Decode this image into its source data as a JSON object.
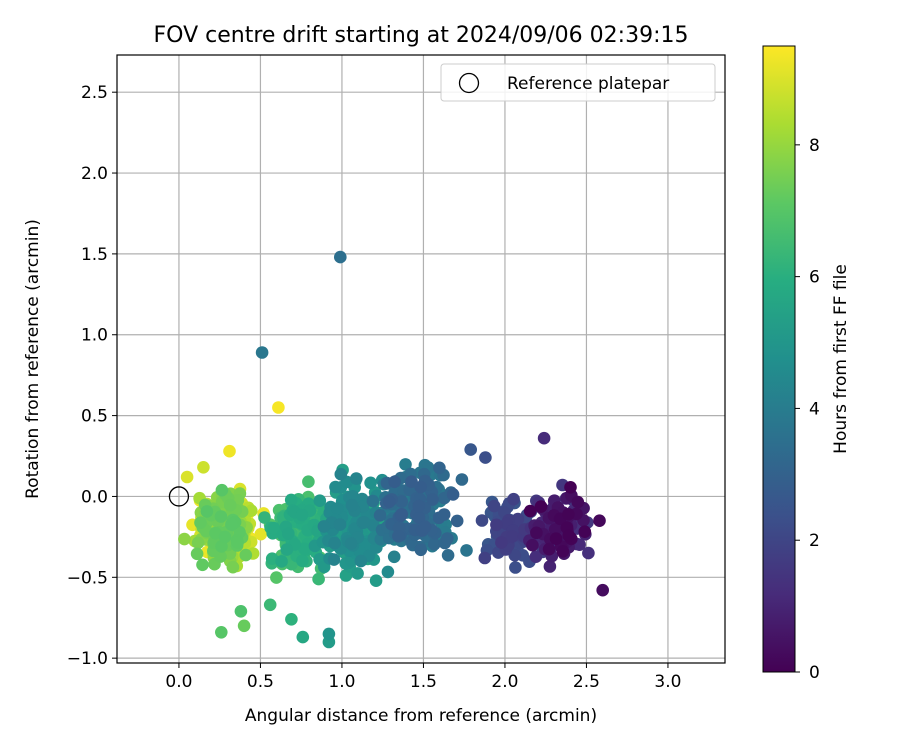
{
  "chart_data": {
    "type": "scatter",
    "title": "FOV centre drift starting at 2024/09/06 02:39:15",
    "xlabel": "Angular distance from reference (arcmin)",
    "ylabel": "Rotation from reference (arcmin)",
    "xlim": [
      -0.38,
      3.35
    ],
    "ylim": [
      -1.03,
      2.73
    ],
    "xticks": [
      0.0,
      0.5,
      1.0,
      1.5,
      2.0,
      2.5,
      3.0
    ],
    "xtick_labels": [
      "0.0",
      "0.5",
      "1.0",
      "1.5",
      "2.0",
      "2.5",
      "3.0"
    ],
    "yticks": [
      -1.0,
      -0.5,
      0.0,
      0.5,
      1.0,
      1.5,
      2.0,
      2.5
    ],
    "ytick_labels": [
      "−1.0",
      "−0.5",
      "0.0",
      "0.5",
      "1.0",
      "1.5",
      "2.0",
      "2.5"
    ],
    "grid": true,
    "legend": {
      "position": "top-right",
      "entries": [
        {
          "label": "Reference platepar",
          "marker": "open-circle",
          "x": 0.0,
          "y": 0.0
        }
      ]
    },
    "colorbar": {
      "label": "Hours from first FF file",
      "colormap": "viridis",
      "min": 0,
      "max": 9.5,
      "ticks": [
        0,
        2,
        4,
        6,
        8
      ],
      "tick_labels": [
        "0",
        "2",
        "4",
        "6",
        "8"
      ]
    },
    "outliers": [
      {
        "x": 0.99,
        "y": 1.48,
        "hours": 3.5
      },
      {
        "x": 0.51,
        "y": 0.89,
        "hours": 3.8
      },
      {
        "x": 0.61,
        "y": 0.55,
        "hours": 9.4
      },
      {
        "x": 0.69,
        "y": -0.39,
        "hours": 9.2
      },
      {
        "x": 0.26,
        "y": -0.84,
        "hours": 7.0
      },
      {
        "x": 0.4,
        "y": -0.8,
        "hours": 7.3
      },
      {
        "x": 0.38,
        "y": -0.71,
        "hours": 6.8
      },
      {
        "x": 0.56,
        "y": -0.67,
        "hours": 6.4
      },
      {
        "x": 0.69,
        "y": -0.76,
        "hours": 6.1
      },
      {
        "x": 0.76,
        "y": -0.87,
        "hours": 5.7
      },
      {
        "x": 0.92,
        "y": -0.9,
        "hours": 5.2
      },
      {
        "x": 0.92,
        "y": -0.85,
        "hours": 4.9
      },
      {
        "x": 1.79,
        "y": 0.29,
        "hours": 2.6
      },
      {
        "x": 1.88,
        "y": 0.24,
        "hours": 2.3
      },
      {
        "x": 2.24,
        "y": 0.36,
        "hours": 1.2
      },
      {
        "x": 2.6,
        "y": -0.58,
        "hours": 0.3
      },
      {
        "x": 2.58,
        "y": -0.15,
        "hours": 0.2
      },
      {
        "x": 0.31,
        "y": 0.28,
        "hours": 9.3
      },
      {
        "x": 0.15,
        "y": 0.18,
        "hours": 8.8
      },
      {
        "x": 0.05,
        "y": 0.12,
        "hours": 9.0
      }
    ],
    "clusters": [
      {
        "hours_range": [
          0.0,
          1.6
        ],
        "x_range": [
          2.05,
          2.62
        ],
        "y_range": [
          -0.55,
          0.18
        ],
        "count": 110
      },
      {
        "hours_range": [
          1.6,
          2.8
        ],
        "x_range": [
          1.75,
          2.3
        ],
        "y_range": [
          -0.52,
          0.1
        ],
        "count": 70
      },
      {
        "hours_range": [
          2.8,
          4.2
        ],
        "x_range": [
          1.05,
          1.85
        ],
        "y_range": [
          -0.55,
          0.35
        ],
        "count": 180
      },
      {
        "hours_range": [
          4.2,
          5.6
        ],
        "x_range": [
          0.75,
          1.4
        ],
        "y_range": [
          -0.7,
          0.3
        ],
        "count": 170
      },
      {
        "hours_range": [
          5.6,
          7.0
        ],
        "x_range": [
          0.45,
          1.05
        ],
        "y_range": [
          -0.6,
          0.15
        ],
        "count": 140
      },
      {
        "hours_range": [
          7.0,
          8.4
        ],
        "x_range": [
          0.0,
          0.55
        ],
        "y_range": [
          -0.56,
          0.2
        ],
        "count": 130
      },
      {
        "hours_range": [
          8.4,
          9.5
        ],
        "x_range": [
          0.02,
          0.55
        ],
        "y_range": [
          -0.5,
          0.13
        ],
        "count": 150
      }
    ]
  }
}
